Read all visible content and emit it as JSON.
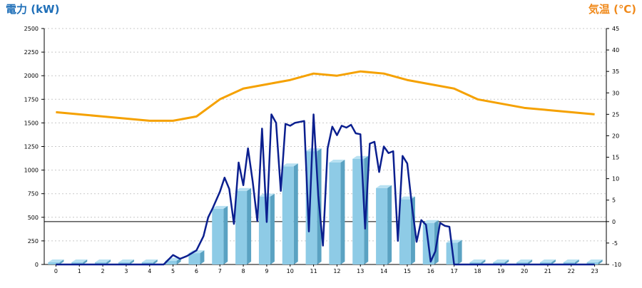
{
  "header": {
    "left_title": "電力 (kW)",
    "right_title": "気温 (℃)"
  },
  "colors": {
    "bar_face": "#8ecbe6",
    "bar_side": "#5aa2c2",
    "bar_top": "#b8e1f2",
    "power_line": "#0b1f8f",
    "temperature_line": "#f5a100",
    "grid": "#c8c8c8",
    "zero_line": "#000000",
    "left_title": "#1f6fb8",
    "right_title": "#f08a1c"
  },
  "chart_data": {
    "type": "bar",
    "grid": true,
    "categories": [
      "0",
      "1",
      "2",
      "3",
      "4",
      "5",
      "6",
      "7",
      "8",
      "9",
      "10",
      "11",
      "12",
      "13",
      "14",
      "15",
      "16",
      "17",
      "18",
      "19",
      "20",
      "21",
      "22",
      "23"
    ],
    "y_left": {
      "label": "電力 (kW)",
      "lim": [
        0,
        2500
      ],
      "ticks": [
        0,
        250,
        500,
        750,
        1000,
        1250,
        1500,
        1750,
        2000,
        2250,
        2500
      ]
    },
    "y_right": {
      "label": "気温 (℃)",
      "lim": [
        -10,
        45
      ],
      "ticks": [
        -10,
        -5,
        0,
        5,
        10,
        15,
        20,
        25,
        30,
        35,
        40,
        45
      ]
    },
    "series": [
      {
        "kind": "bar",
        "axis": "left",
        "values": [
          0,
          0,
          0,
          0,
          0,
          40,
          120,
          590,
          780,
          720,
          1040,
          1200,
          1080,
          1120,
          810,
          690,
          440,
          230,
          0,
          0,
          0,
          0,
          0,
          0
        ]
      },
      {
        "kind": "line",
        "axis": "left",
        "x": [
          0,
          1,
          2,
          3,
          4,
          4.6,
          5,
          5.3,
          5.6,
          6,
          6.3,
          6.5,
          6.7,
          7,
          7.2,
          7.4,
          7.6,
          7.8,
          8,
          8.2,
          8.4,
          8.6,
          8.8,
          9,
          9.2,
          9.4,
          9.6,
          9.8,
          10,
          10.2,
          10.4,
          10.6,
          10.8,
          11,
          11.2,
          11.4,
          11.6,
          11.8,
          12,
          12.2,
          12.4,
          12.6,
          12.8,
          13,
          13.2,
          13.4,
          13.6,
          13.8,
          14,
          14.2,
          14.4,
          14.6,
          14.8,
          15,
          15.2,
          15.4,
          15.6,
          15.8,
          16,
          16.2,
          16.4,
          16.6,
          16.8,
          17,
          17.2,
          17.4,
          17.6,
          18,
          19,
          20,
          21,
          22,
          23
        ],
        "values": [
          0,
          0,
          0,
          0,
          0,
          0,
          100,
          60,
          90,
          150,
          300,
          500,
          600,
          770,
          920,
          800,
          430,
          1080,
          840,
          1230,
          880,
          460,
          1440,
          450,
          1590,
          1500,
          780,
          1490,
          1470,
          1500,
          1510,
          1520,
          350,
          1590,
          730,
          200,
          1230,
          1460,
          1370,
          1470,
          1450,
          1480,
          1390,
          1380,
          380,
          1280,
          1300,
          980,
          1250,
          1180,
          1200,
          250,
          1150,
          1070,
          620,
          240,
          470,
          420,
          30,
          140,
          440,
          410,
          400,
          0,
          0,
          0,
          0,
          0,
          0,
          0,
          0,
          0,
          0
        ]
      },
      {
        "kind": "line",
        "axis": "right",
        "values": [
          25.5,
          25,
          24.5,
          24,
          23.5,
          23.5,
          24.5,
          28.5,
          31,
          32,
          33,
          34.5,
          34,
          35,
          34.5,
          33,
          32,
          31,
          28.5,
          27.5,
          26.5,
          26,
          25.5,
          25
        ]
      }
    ]
  }
}
